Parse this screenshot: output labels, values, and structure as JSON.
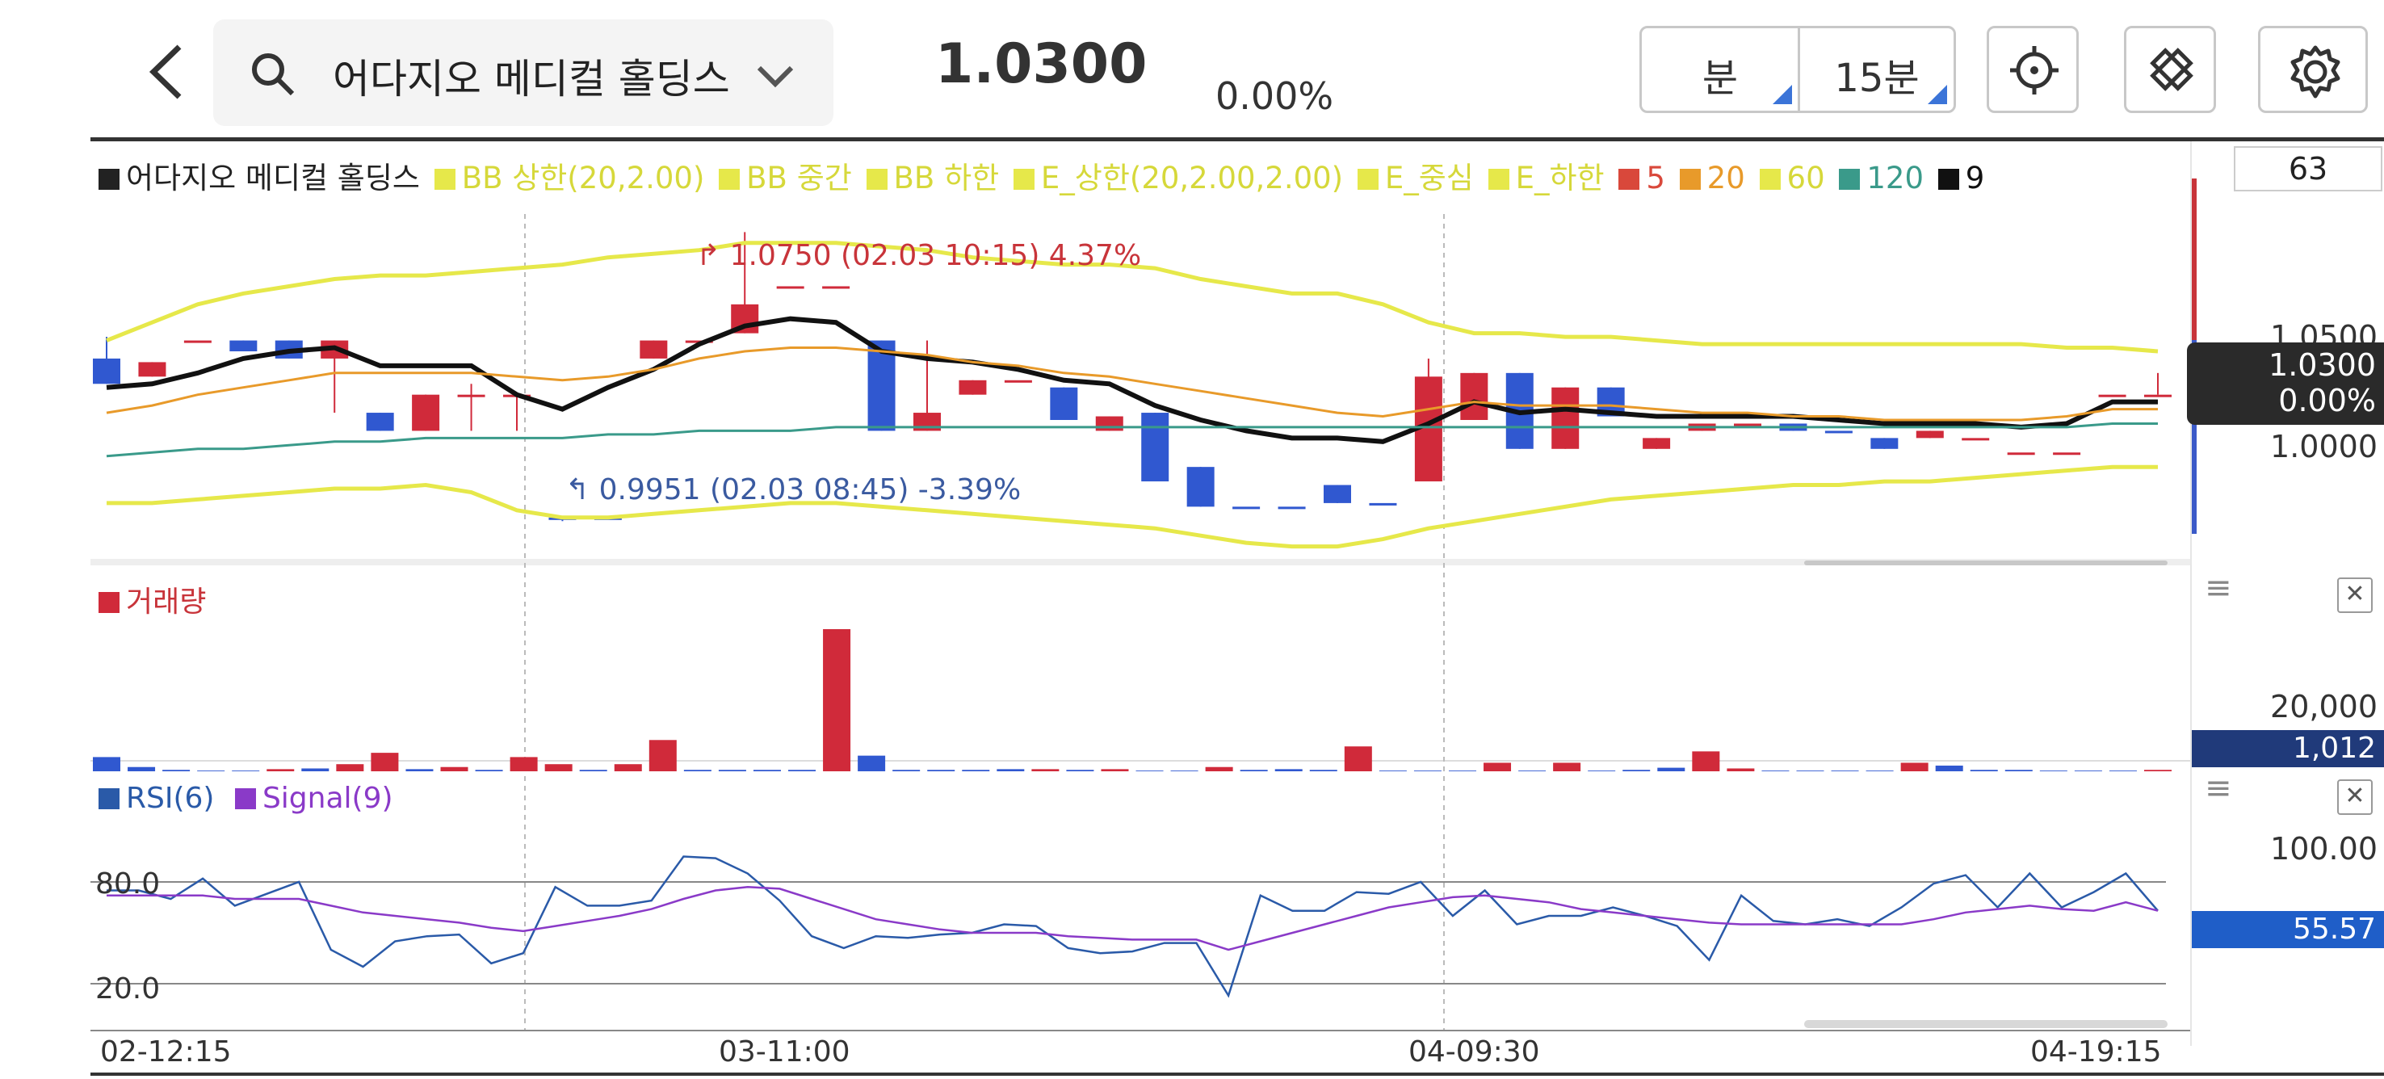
{
  "header": {
    "stock_name": "어다지오 메디컬 홀딩스",
    "price": "1.0300",
    "change": "0.00%",
    "unit_tab": "분",
    "interval_tab": "15분"
  },
  "legend": [
    {
      "label": "어다지오 메디컬 홀딩스",
      "color": "#222222"
    },
    {
      "label": "BB 상한(20,2.00)",
      "color": "#e6e84a"
    },
    {
      "label": "BB 중간",
      "color": "#e6e84a"
    },
    {
      "label": "BB 하한",
      "color": "#e6e84a"
    },
    {
      "label": "E_상한(20,2.00,2.00)",
      "color": "#e6e84a"
    },
    {
      "label": "E_중심",
      "color": "#e6e84a"
    },
    {
      "label": "E_하한",
      "color": "#e6e84a"
    },
    {
      "label": "5",
      "color": "#d9483b"
    },
    {
      "label": "20",
      "color": "#e89a2a"
    },
    {
      "label": "60",
      "color": "#e6e84a"
    },
    {
      "label": "120",
      "color": "#3a9a8a"
    },
    {
      "label": "9",
      "color": "#111111"
    }
  ],
  "price_axis": {
    "top_value": "63",
    "ticks": [
      "1.0500",
      "1.0000"
    ],
    "current_price": "1.0300",
    "current_change": "0.00%"
  },
  "annotations": {
    "high": "1.0750 (02.03 10:15) 4.37%",
    "low": "0.9951 (02.03 08:45) -3.39%"
  },
  "volume": {
    "title": "거래량",
    "axis_label": "20,000",
    "current": "1,012"
  },
  "rsi": {
    "legend_rsi": "RSI(6)",
    "legend_signal": "Signal(9)",
    "axis_top": "100.00",
    "current": "55.57",
    "line_high": "80.0",
    "line_low": "20.0"
  },
  "x_axis": {
    "labels": [
      "02-12:15",
      "03-11:00",
      "04-09:30",
      "04-19:15"
    ]
  },
  "chart_data": [
    {
      "type": "candlestick",
      "ylim": [
        0.985,
        1.08
      ],
      "candles": [
        {
          "o": 1.04,
          "c": 1.033,
          "h": 1.046,
          "l": 1.033,
          "up": false
        },
        {
          "o": 1.035,
          "c": 1.039,
          "h": 1.039,
          "l": 1.035,
          "up": true
        },
        {
          "o": 1.045,
          "c": 1.045,
          "h": 1.045,
          "l": 1.045,
          "up": true
        },
        {
          "o": 1.045,
          "c": 1.042,
          "h": 1.045,
          "l": 1.042,
          "up": false
        },
        {
          "o": 1.045,
          "c": 1.04,
          "h": 1.045,
          "l": 1.04,
          "up": false
        },
        {
          "o": 1.04,
          "c": 1.045,
          "h": 1.045,
          "l": 1.025,
          "up": true
        },
        {
          "o": 1.025,
          "c": 1.02,
          "h": 1.025,
          "l": 1.02,
          "up": false
        },
        {
          "o": 1.02,
          "c": 1.03,
          "h": 1.03,
          "l": 1.02,
          "up": true
        },
        {
          "o": 1.03,
          "c": 1.03,
          "h": 1.033,
          "l": 1.02,
          "up": true
        },
        {
          "o": 1.03,
          "c": 1.03,
          "h": 1.03,
          "l": 1.02,
          "up": true
        },
        {
          "o": 0.996,
          "c": 0.996,
          "h": 0.996,
          "l": 0.995,
          "up": false
        },
        {
          "o": 0.996,
          "c": 0.996,
          "h": 0.996,
          "l": 0.996,
          "up": false
        },
        {
          "o": 1.04,
          "c": 1.045,
          "h": 1.045,
          "l": 1.04,
          "up": true
        },
        {
          "o": 1.045,
          "c": 1.045,
          "h": 1.045,
          "l": 1.045,
          "up": true
        },
        {
          "o": 1.047,
          "c": 1.055,
          "h": 1.075,
          "l": 1.047,
          "up": true
        },
        {
          "o": 1.06,
          "c": 1.06,
          "h": 1.06,
          "l": 1.06,
          "up": true
        },
        {
          "o": 1.06,
          "c": 1.06,
          "h": 1.06,
          "l": 1.06,
          "up": true
        },
        {
          "o": 1.045,
          "c": 1.02,
          "h": 1.045,
          "l": 1.02,
          "up": false
        },
        {
          "o": 1.02,
          "c": 1.025,
          "h": 1.045,
          "l": 1.02,
          "up": true
        },
        {
          "o": 1.03,
          "c": 1.034,
          "h": 1.034,
          "l": 1.03,
          "up": true
        },
        {
          "o": 1.034,
          "c": 1.034,
          "h": 1.034,
          "l": 1.034,
          "up": true
        },
        {
          "o": 1.032,
          "c": 1.023,
          "h": 1.032,
          "l": 1.023,
          "up": false
        },
        {
          "o": 1.02,
          "c": 1.024,
          "h": 1.024,
          "l": 1.02,
          "up": true
        },
        {
          "o": 1.025,
          "c": 1.006,
          "h": 1.025,
          "l": 1.006,
          "up": false
        },
        {
          "o": 1.01,
          "c": 0.999,
          "h": 1.01,
          "l": 0.999,
          "up": false
        },
        {
          "o": 0.999,
          "c": 0.999,
          "h": 0.999,
          "l": 0.999,
          "up": false
        },
        {
          "o": 0.999,
          "c": 0.999,
          "h": 0.999,
          "l": 0.999,
          "up": false
        },
        {
          "o": 1.005,
          "c": 1.0,
          "h": 1.005,
          "l": 1.0,
          "up": false
        },
        {
          "o": 1.0,
          "c": 1.0,
          "h": 1.0,
          "l": 1.0,
          "up": false
        },
        {
          "o": 1.006,
          "c": 1.035,
          "h": 1.04,
          "l": 1.006,
          "up": true
        },
        {
          "o": 1.023,
          "c": 1.036,
          "h": 1.036,
          "l": 1.023,
          "up": true
        },
        {
          "o": 1.036,
          "c": 1.015,
          "h": 1.036,
          "l": 1.015,
          "up": false
        },
        {
          "o": 1.015,
          "c": 1.032,
          "h": 1.032,
          "l": 1.015,
          "up": true
        },
        {
          "o": 1.032,
          "c": 1.024,
          "h": 1.032,
          "l": 1.024,
          "up": false
        },
        {
          "o": 1.015,
          "c": 1.018,
          "h": 1.018,
          "l": 1.015,
          "up": true
        },
        {
          "o": 1.02,
          "c": 1.022,
          "h": 1.022,
          "l": 1.02,
          "up": true
        },
        {
          "o": 1.022,
          "c": 1.022,
          "h": 1.022,
          "l": 1.022,
          "up": true
        },
        {
          "o": 1.022,
          "c": 1.02,
          "h": 1.022,
          "l": 1.02,
          "up": false
        },
        {
          "o": 1.02,
          "c": 1.02,
          "h": 1.02,
          "l": 1.02,
          "up": false
        },
        {
          "o": 1.018,
          "c": 1.015,
          "h": 1.018,
          "l": 1.015,
          "up": false
        },
        {
          "o": 1.018,
          "c": 1.02,
          "h": 1.02,
          "l": 1.018,
          "up": true
        },
        {
          "o": 1.018,
          "c": 1.018,
          "h": 1.018,
          "l": 1.018,
          "up": true
        },
        {
          "o": 1.014,
          "c": 1.014,
          "h": 1.014,
          "l": 1.014,
          "up": true
        },
        {
          "o": 1.014,
          "c": 1.014,
          "h": 1.014,
          "l": 1.014,
          "up": true
        },
        {
          "o": 1.03,
          "c": 1.03,
          "h": 1.03,
          "l": 1.03,
          "up": true
        },
        {
          "o": 1.03,
          "c": 1.03,
          "h": 1.036,
          "l": 1.03,
          "up": true
        }
      ],
      "series": [
        {
          "name": "9",
          "color": "#111111",
          "values": [
            1.032,
            1.033,
            1.036,
            1.04,
            1.042,
            1.043,
            1.038,
            1.038,
            1.038,
            1.03,
            1.026,
            1.032,
            1.037,
            1.044,
            1.049,
            1.051,
            1.05,
            1.042,
            1.04,
            1.039,
            1.037,
            1.034,
            1.033,
            1.027,
            1.023,
            1.02,
            1.018,
            1.018,
            1.017,
            1.022,
            1.028,
            1.025,
            1.026,
            1.025,
            1.024,
            1.024,
            1.024,
            1.024,
            1.023,
            1.022,
            1.022,
            1.022,
            1.021,
            1.022,
            1.028,
            1.028
          ]
        },
        {
          "name": "20",
          "color": "#e89a2a",
          "values": [
            1.025,
            1.027,
            1.03,
            1.032,
            1.034,
            1.036,
            1.036,
            1.036,
            1.036,
            1.035,
            1.034,
            1.035,
            1.037,
            1.04,
            1.042,
            1.043,
            1.043,
            1.042,
            1.041,
            1.039,
            1.038,
            1.036,
            1.035,
            1.033,
            1.031,
            1.029,
            1.027,
            1.025,
            1.024,
            1.026,
            1.028,
            1.027,
            1.027,
            1.027,
            1.026,
            1.025,
            1.025,
            1.024,
            1.024,
            1.023,
            1.023,
            1.023,
            1.023,
            1.024,
            1.026,
            1.026
          ]
        },
        {
          "name": "120",
          "color": "#3a9a8a",
          "values": [
            1.013,
            1.014,
            1.015,
            1.015,
            1.016,
            1.017,
            1.017,
            1.018,
            1.018,
            1.018,
            1.018,
            1.019,
            1.019,
            1.02,
            1.02,
            1.02,
            1.021,
            1.021,
            1.021,
            1.021,
            1.021,
            1.021,
            1.021,
            1.021,
            1.021,
            1.021,
            1.021,
            1.021,
            1.021,
            1.021,
            1.021,
            1.021,
            1.021,
            1.021,
            1.021,
            1.021,
            1.021,
            1.021,
            1.021,
            1.021,
            1.021,
            1.021,
            1.021,
            1.021,
            1.022,
            1.022
          ]
        },
        {
          "name": "BB 상한(20,2.00)",
          "color": "#e6e84a",
          "values": [
            1.045,
            1.05,
            1.055,
            1.058,
            1.06,
            1.062,
            1.063,
            1.063,
            1.064,
            1.065,
            1.066,
            1.068,
            1.069,
            1.07,
            1.072,
            1.072,
            1.072,
            1.071,
            1.07,
            1.068,
            1.067,
            1.066,
            1.066,
            1.065,
            1.062,
            1.06,
            1.058,
            1.058,
            1.055,
            1.05,
            1.047,
            1.047,
            1.046,
            1.046,
            1.045,
            1.044,
            1.044,
            1.044,
            1.044,
            1.044,
            1.044,
            1.044,
            1.044,
            1.043,
            1.043,
            1.042
          ]
        },
        {
          "name": "BB 하한(20,2.00)",
          "color": "#e6e84a",
          "values": [
            1.0,
            1.0,
            1.001,
            1.002,
            1.003,
            1.004,
            1.004,
            1.005,
            1.003,
            0.998,
            0.996,
            0.996,
            0.997,
            0.998,
            0.999,
            1.0,
            1.0,
            0.999,
            0.998,
            0.997,
            0.996,
            0.995,
            0.994,
            0.993,
            0.991,
            0.989,
            0.988,
            0.988,
            0.99,
            0.993,
            0.995,
            0.997,
            0.999,
            1.001,
            1.002,
            1.003,
            1.004,
            1.005,
            1.005,
            1.006,
            1.006,
            1.007,
            1.008,
            1.009,
            1.01,
            1.01
          ]
        }
      ],
      "annotations": [
        "1.0750 (02.03 10:15) 4.37%",
        "0.9951 (02.03 08:45) -3.39%"
      ]
    },
    {
      "type": "bar",
      "title": "거래량",
      "ylim": [
        0,
        25000
      ],
      "values": [
        2000,
        600,
        200,
        100,
        100,
        300,
        400,
        1000,
        2600,
        300,
        600,
        200,
        2000,
        1000,
        200,
        1000,
        4400,
        200,
        200,
        200,
        200,
        20000,
        2200,
        200,
        200,
        200,
        300,
        300,
        200,
        300,
        100,
        100,
        600,
        200,
        300,
        200,
        3500,
        100,
        100,
        100,
        1200,
        100,
        1200,
        100,
        200,
        500,
        2800,
        400,
        100,
        100,
        100,
        100,
        1200,
        800,
        200,
        200,
        100,
        100,
        100,
        200
      ],
      "up": [
        false,
        false,
        false,
        false,
        false,
        true,
        false,
        true,
        true,
        false,
        true,
        false,
        true,
        true,
        false,
        true,
        true,
        false,
        false,
        false,
        false,
        true,
        false,
        false,
        false,
        false,
        false,
        true,
        false,
        true,
        false,
        false,
        true,
        false,
        false,
        false,
        true,
        false,
        false,
        false,
        true,
        false,
        true,
        false,
        false,
        false,
        true,
        true,
        false,
        false,
        false,
        false,
        true,
        false,
        false,
        false,
        false,
        false,
        false,
        true
      ]
    },
    {
      "type": "line",
      "title": "RSI(6)",
      "ylim": [
        0,
        100
      ],
      "series": [
        {
          "name": "RSI(6)",
          "color": "#2a5aa8",
          "values": [
            75,
            75,
            70,
            82,
            66,
            73,
            80,
            40,
            30,
            45,
            48,
            49,
            32,
            38,
            77,
            66,
            66,
            69,
            95,
            94,
            85,
            69,
            48,
            41,
            48,
            47,
            49,
            50,
            55,
            54,
            41,
            38,
            39,
            44,
            44,
            13,
            72,
            63,
            63,
            74,
            73,
            80,
            60,
            75,
            55,
            60,
            60,
            65,
            60,
            54,
            34,
            72,
            57,
            55,
            58,
            54,
            65,
            79,
            84,
            65,
            85,
            65,
            74,
            85,
            63
          ]
        },
        {
          "name": "Signal(9)",
          "color": "#8a3ac8",
          "values": [
            72,
            72,
            72,
            72,
            70,
            70,
            70,
            66,
            62,
            60,
            58,
            56,
            53,
            51,
            54,
            57,
            60,
            64,
            70,
            75,
            77,
            76,
            70,
            64,
            58,
            55,
            52,
            50,
            50,
            50,
            48,
            47,
            46,
            46,
            46,
            40,
            45,
            50,
            55,
            60,
            65,
            68,
            71,
            72,
            70,
            68,
            64,
            62,
            60,
            58,
            56,
            55,
            55,
            55,
            55,
            55,
            55,
            58,
            62,
            64,
            66,
            64,
            63,
            68,
            63
          ]
        }
      ],
      "hlines": [
        80.0,
        20.0
      ]
    }
  ]
}
